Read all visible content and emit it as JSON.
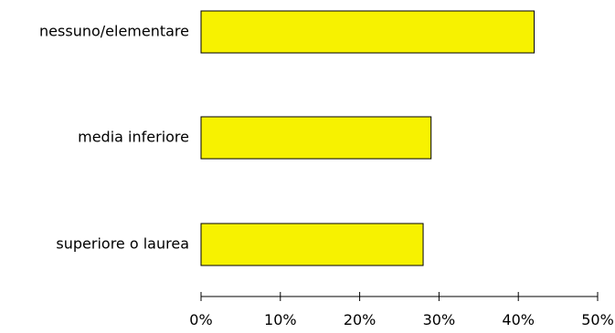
{
  "chart_data": {
    "type": "bar",
    "orientation": "horizontal",
    "title": "",
    "xlabel": "",
    "ylabel": "",
    "categories": [
      "nessuno/elementare",
      "media inferiore",
      "superiore o laurea"
    ],
    "values": [
      42,
      29,
      28
    ],
    "unit": "%",
    "xlim": [
      0,
      50
    ],
    "ticks": [
      0,
      10,
      20,
      30,
      40,
      50
    ],
    "tick_labels": [
      "0%",
      "10%",
      "20%",
      "30%",
      "40%",
      "50%"
    ],
    "grid": false,
    "legend": "none",
    "bar_color": "#f7f200",
    "bar_edge_color": "#000000"
  }
}
